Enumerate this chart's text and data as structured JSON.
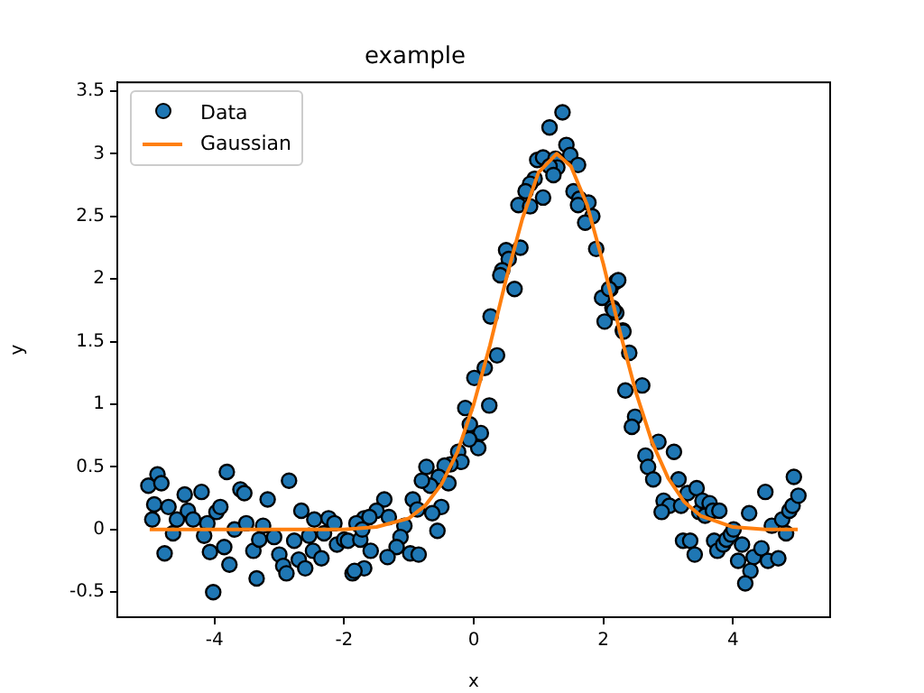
{
  "chart_data": {
    "type": "scatter",
    "title": "example",
    "xlabel": "x",
    "ylabel": "y",
    "xlim": [
      -5.5,
      5.5
    ],
    "xticks": [
      -4,
      -2,
      0,
      2,
      4
    ],
    "ylim": [
      -0.7,
      3.57
    ],
    "yticks": [
      -0.5,
      0.0,
      0.5,
      1.0,
      1.5,
      2.0,
      2.5,
      3.0,
      3.5
    ],
    "grid": false,
    "legend": "top left",
    "series": [
      {
        "name": "Data",
        "marker": "circle",
        "color": "#1f77b4",
        "x": [
          -5.02,
          -4.88,
          -4.82,
          -4.93,
          -4.96,
          -4.71,
          -4.77,
          -4.64,
          -4.58,
          -4.46,
          -4.41,
          -4.33,
          -4.2,
          -4.11,
          -4.16,
          -4.07,
          -4.02,
          -3.97,
          -3.91,
          -3.81,
          -3.85,
          -3.77,
          -3.69,
          -3.6,
          -3.54,
          -3.51,
          -3.4,
          -3.31,
          -3.25,
          -3.18,
          -3.35,
          -3.08,
          -3.0,
          -2.94,
          -2.89,
          -2.85,
          -2.77,
          -2.7,
          -2.66,
          -2.6,
          -2.54,
          -2.48,
          -2.46,
          -2.35,
          -2.31,
          -2.24,
          -2.15,
          -2.11,
          -2.0,
          -1.94,
          -1.87,
          -1.75,
          -1.69,
          0.26,
          0.36,
          0.17,
          0.01,
          0.24,
          -0.13,
          -0.06,
          0.11,
          0.07,
          -0.07,
          -0.24,
          -0.19,
          -0.36,
          -0.45,
          -0.54,
          -0.73,
          -0.67,
          -0.8,
          -0.39,
          -0.94,
          -0.87,
          -0.5,
          -0.64,
          -0.56,
          -1.38,
          -1.5,
          -1.61,
          -1.31,
          -1.81,
          -1.72,
          -1.07,
          -1.13,
          -1.19,
          -1.33,
          -0.98,
          -0.85,
          -1.59,
          -1.69,
          -1.84,
          1.37,
          1.17,
          1.43,
          1.49,
          0.98,
          1.07,
          1.26,
          1.29,
          1.61,
          1.17,
          1.23,
          0.94,
          0.87,
          0.8,
          1.07,
          1.54,
          1.63,
          1.77,
          0.69,
          0.87,
          1.61,
          1.83,
          1.72,
          1.89,
          0.5,
          0.72,
          0.54,
          0.44,
          0.41,
          0.63,
          2.2,
          2.11,
          1.98,
          2.14,
          2.2,
          2.02,
          2.3,
          2.23,
          2.09,
          2.16,
          2.31,
          2.4,
          2.34,
          2.6,
          2.49,
          2.44,
          2.85,
          3.09,
          2.65,
          2.69,
          2.77,
          3.16,
          3.3,
          3.44,
          2.93,
          3.02,
          2.9,
          3.2,
          3.48,
          3.23,
          3.34,
          3.41,
          3.53,
          3.64,
          3.57,
          3.69,
          3.79,
          3.71,
          3.76,
          3.85,
          3.9,
          3.97,
          4.01,
          4.14,
          4.08,
          4.25,
          4.32,
          4.27,
          4.19,
          4.44,
          4.5,
          4.54,
          4.6,
          4.7,
          4.82,
          4.76,
          4.87,
          4.92,
          5.01,
          4.94
        ],
        "values": [
          0.35,
          0.44,
          0.37,
          0.2,
          0.08,
          0.18,
          -0.19,
          -0.03,
          0.08,
          0.28,
          0.15,
          0.08,
          0.3,
          0.05,
          -0.05,
          -0.18,
          -0.5,
          0.14,
          0.18,
          0.46,
          -0.14,
          -0.28,
          0.0,
          0.32,
          0.29,
          0.05,
          -0.17,
          -0.08,
          0.03,
          0.24,
          -0.39,
          -0.06,
          -0.2,
          -0.29,
          -0.35,
          0.39,
          -0.09,
          -0.24,
          0.15,
          -0.31,
          -0.05,
          -0.17,
          0.08,
          -0.23,
          -0.03,
          0.09,
          0.05,
          -0.12,
          -0.08,
          -0.09,
          -0.35,
          -0.08,
          0.09,
          1.7,
          1.39,
          1.29,
          1.21,
          0.99,
          0.97,
          0.84,
          0.77,
          0.65,
          0.72,
          0.62,
          0.54,
          0.52,
          0.51,
          0.42,
          0.5,
          0.35,
          0.39,
          0.37,
          0.24,
          0.16,
          0.18,
          0.13,
          -0.01,
          0.24,
          0.15,
          0.1,
          0.1,
          0.05,
          0.0,
          0.03,
          -0.06,
          -0.14,
          -0.22,
          -0.19,
          -0.2,
          -0.17,
          -0.31,
          -0.33,
          3.33,
          3.21,
          3.07,
          2.99,
          2.95,
          2.97,
          2.96,
          2.89,
          2.91,
          2.9,
          2.83,
          2.8,
          2.76,
          2.7,
          2.65,
          2.7,
          2.64,
          2.61,
          2.59,
          2.58,
          2.59,
          2.5,
          2.45,
          2.24,
          2.23,
          2.25,
          2.16,
          2.07,
          2.03,
          1.92,
          1.98,
          1.92,
          1.85,
          1.77,
          1.73,
          1.66,
          1.59,
          1.99,
          1.92,
          1.75,
          1.58,
          1.41,
          1.11,
          1.15,
          0.9,
          0.82,
          0.7,
          0.62,
          0.59,
          0.5,
          0.4,
          0.4,
          0.29,
          0.33,
          0.23,
          0.19,
          0.14,
          0.19,
          0.14,
          -0.09,
          -0.09,
          -0.2,
          0.23,
          0.21,
          0.11,
          0.15,
          0.15,
          -0.09,
          -0.17,
          -0.12,
          -0.08,
          -0.04,
          0.0,
          -0.12,
          -0.25,
          0.13,
          -0.22,
          -0.33,
          -0.43,
          -0.15,
          0.3,
          -0.25,
          0.03,
          -0.23,
          -0.03,
          0.08,
          0.15,
          0.19,
          0.27,
          0.42
        ]
      },
      {
        "name": "Gaussian",
        "type": "line",
        "marker": "none",
        "color": "#ff7f0e",
        "x": [
          -5,
          -2,
          -1.5,
          -1,
          -0.75,
          -0.5,
          -0.25,
          0,
          0.25,
          0.5,
          0.75,
          1,
          1.28,
          1.5,
          1.75,
          2,
          2.25,
          2.5,
          2.75,
          3,
          3.25,
          3.5,
          4,
          4.5,
          5
        ],
        "values": [
          0,
          0,
          0.02,
          0.09,
          0.19,
          0.36,
          0.62,
          1.0,
          1.47,
          2.0,
          2.48,
          2.85,
          3.0,
          2.9,
          2.59,
          2.12,
          1.59,
          1.1,
          0.7,
          0.41,
          0.22,
          0.11,
          0.02,
          0,
          0
        ]
      }
    ]
  }
}
